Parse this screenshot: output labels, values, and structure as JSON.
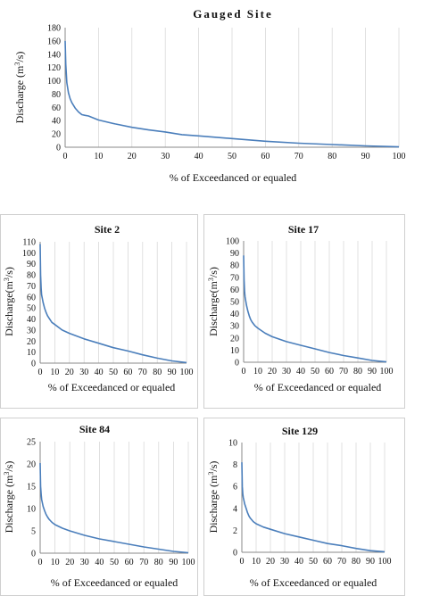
{
  "style": {
    "line_color": "#4a7ebb",
    "grid_color": "#d9d9d9",
    "axis_color": "#888888",
    "frame_color": "#cfcfcf"
  },
  "chart_data": [
    {
      "type": "line",
      "title": "Gauged Site",
      "xlabel": "% of Exceedanced or equaled",
      "ylabel": "Discharge (m3/s)",
      "xlim": [
        0,
        100
      ],
      "ylim": [
        0,
        180
      ],
      "xticks": [
        0,
        10,
        20,
        30,
        40,
        50,
        60,
        70,
        80,
        90,
        100
      ],
      "yticks": [
        0,
        20,
        40,
        60,
        80,
        100,
        120,
        140,
        160,
        180
      ],
      "grid": "vertical",
      "series": [
        {
          "x": [
            0,
            0.2,
            0.5,
            1,
            1.5,
            2,
            3,
            4,
            5,
            6,
            7,
            8,
            10,
            15,
            20,
            25,
            30,
            35,
            40,
            50,
            60,
            70,
            80,
            90,
            100
          ],
          "y": [
            160,
            125,
            97,
            82,
            73,
            67,
            59,
            53,
            49,
            48,
            47,
            45,
            41,
            35,
            30,
            26,
            23,
            19,
            17,
            13,
            9,
            6,
            4,
            2,
            0.5
          ]
        }
      ]
    },
    {
      "type": "line",
      "title": "Site 2",
      "xlabel": "% of Exceedanced or equaled",
      "ylabel": "Discharge(m3/s)",
      "xlim": [
        0,
        100
      ],
      "ylim": [
        0,
        110
      ],
      "xticks": [
        0,
        10,
        20,
        30,
        40,
        50,
        60,
        70,
        80,
        90,
        100
      ],
      "yticks": [
        0,
        10,
        20,
        30,
        40,
        50,
        60,
        70,
        80,
        90,
        100,
        110
      ],
      "grid": "vertical",
      "series": [
        {
          "x": [
            0,
            0.3,
            0.7,
            1,
            2,
            3,
            4,
            5,
            6,
            8,
            10,
            15,
            20,
            30,
            40,
            50,
            60,
            70,
            80,
            90,
            100
          ],
          "y": [
            108,
            80,
            68,
            62,
            55,
            50,
            46,
            43,
            41,
            37,
            35,
            30,
            27,
            22,
            18,
            14,
            11,
            7.5,
            4.5,
            2,
            0.5
          ]
        }
      ]
    },
    {
      "type": "line",
      "title": "Site 17",
      "xlabel": "% of Exceedanced or equaled",
      "ylabel": "Discharge(m3/s)",
      "xlim": [
        0,
        100
      ],
      "ylim": [
        0,
        100
      ],
      "xticks": [
        0,
        10,
        20,
        30,
        40,
        50,
        60,
        70,
        80,
        90,
        100
      ],
      "yticks": [
        0,
        10,
        20,
        30,
        40,
        50,
        60,
        70,
        80,
        90,
        100
      ],
      "grid": "vertical",
      "series": [
        {
          "x": [
            0,
            0.3,
            0.7,
            1,
            2,
            3,
            4,
            5,
            6,
            8,
            10,
            15,
            20,
            30,
            40,
            50,
            60,
            70,
            80,
            90,
            100
          ],
          "y": [
            88,
            68,
            58,
            54,
            47,
            42,
            38,
            35,
            33,
            30,
            28,
            24,
            21,
            17,
            14,
            11,
            8,
            5.5,
            3.5,
            1.5,
            0.3
          ]
        }
      ]
    },
    {
      "type": "line",
      "title": "Site 84",
      "xlabel": "% of Exceedanced or equaled",
      "ylabel": "Discharge (m3/s)",
      "xlim": [
        0,
        100
      ],
      "ylim": [
        0,
        25
      ],
      "xticks": [
        0,
        10,
        20,
        30,
        40,
        50,
        60,
        70,
        80,
        90,
        100
      ],
      "yticks": [
        0,
        5,
        10,
        15,
        20,
        25
      ],
      "grid": "vertical",
      "series": [
        {
          "x": [
            0,
            0.3,
            0.7,
            1,
            2,
            3,
            4,
            5,
            6,
            8,
            10,
            15,
            20,
            30,
            40,
            50,
            60,
            70,
            80,
            90,
            100
          ],
          "y": [
            20.2,
            15,
            13,
            12,
            10.5,
            9.5,
            8.7,
            8.1,
            7.6,
            6.9,
            6.4,
            5.6,
            5,
            4,
            3.2,
            2.6,
            2,
            1.4,
            0.9,
            0.4,
            0.1
          ]
        }
      ]
    },
    {
      "type": "line",
      "title": "Site 129",
      "xlabel": "% of Exceedanced or equaled",
      "ylabel": "Discharge (m3/s)",
      "xlim": [
        0,
        100
      ],
      "ylim": [
        0,
        10
      ],
      "xticks": [
        0,
        10,
        20,
        30,
        40,
        50,
        60,
        70,
        80,
        90,
        100
      ],
      "yticks": [
        0,
        2,
        4,
        6,
        8,
        10
      ],
      "grid": "vertical",
      "series": [
        {
          "x": [
            0,
            0.3,
            0.7,
            1,
            2,
            3,
            4,
            5,
            6,
            8,
            10,
            15,
            20,
            30,
            40,
            50,
            60,
            70,
            80,
            90,
            100
          ],
          "y": [
            8.2,
            6,
            5.3,
            5,
            4.4,
            4,
            3.6,
            3.3,
            3.1,
            2.8,
            2.6,
            2.3,
            2.1,
            1.7,
            1.4,
            1.1,
            0.8,
            0.6,
            0.35,
            0.15,
            0.05
          ]
        }
      ]
    }
  ]
}
